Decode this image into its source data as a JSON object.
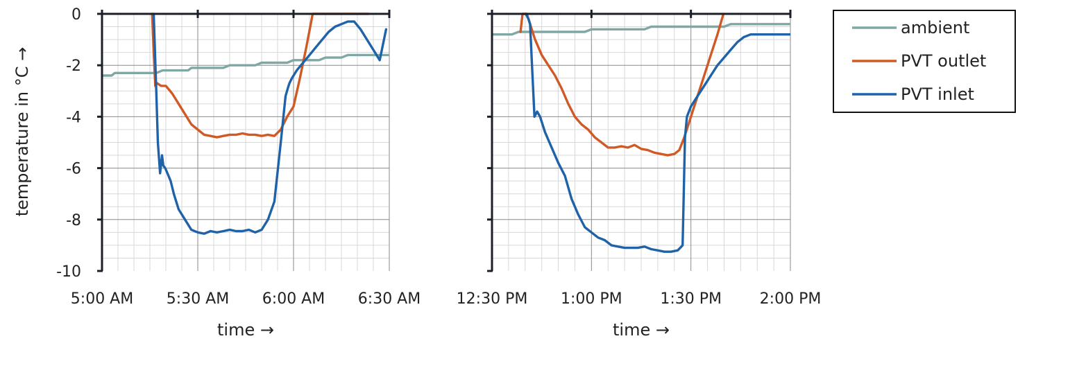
{
  "y_axis_title": "temperature in °C →",
  "legend": {
    "placement": "top-right",
    "items": [
      {
        "label": "ambient",
        "color": "#7fa8a5"
      },
      {
        "label": "PVT outlet",
        "color": "#cf5a26"
      },
      {
        "label": "PVT inlet",
        "color": "#1f62a8"
      }
    ]
  },
  "chart_data": [
    {
      "type": "line",
      "xlabel": "time →",
      "ylabel": "temperature in °C →",
      "xlim": [
        "5:00 AM",
        "6:30 AM"
      ],
      "ylim": [
        -10,
        0
      ],
      "x_ticks": [
        "5:00 AM",
        "5:30 AM",
        "6:00 AM",
        "6:30 AM"
      ],
      "y_ticks": [
        "0",
        "-2",
        "-4",
        "-6",
        "-8",
        "-10"
      ],
      "grid": true,
      "series": [
        {
          "name": "ambient",
          "color": "#7fa8a5",
          "x": [
            0,
            3,
            4,
            17,
            19,
            27,
            28,
            38,
            40,
            48,
            50,
            58,
            60,
            68,
            70,
            75,
            77,
            79,
            80,
            90
          ],
          "y": [
            -2.4,
            -2.4,
            -2.3,
            -2.3,
            -2.2,
            -2.2,
            -2.1,
            -2.1,
            -2.0,
            -2.0,
            -1.9,
            -1.9,
            -1.8,
            -1.8,
            -1.7,
            -1.7,
            -1.6,
            -1.6,
            -1.6,
            -1.6
          ]
        },
        {
          "name": "PVT outlet",
          "color": "#cf5a26",
          "x": [
            15.7,
            16.2,
            16.7,
            17.3,
            18.5,
            20,
            22,
            24,
            26,
            28,
            30,
            32,
            34,
            36,
            38,
            40,
            42,
            44,
            46,
            48,
            50,
            52,
            54,
            56,
            58,
            60,
            62,
            64,
            66,
            68,
            70,
            72,
            74,
            76,
            78,
            80,
            82,
            83.5
          ],
          "y": [
            0.0,
            -1.5,
            -2.8,
            -2.7,
            -2.8,
            -2.8,
            -3.1,
            -3.5,
            -3.9,
            -4.3,
            -4.5,
            -4.7,
            -4.75,
            -4.8,
            -4.75,
            -4.7,
            -4.7,
            -4.65,
            -4.7,
            -4.7,
            -4.75,
            -4.7,
            -4.75,
            -4.5,
            -4.0,
            -3.6,
            -2.5,
            -1.3,
            0.0,
            0.0,
            0.0,
            0.0,
            0.0,
            0.0,
            0.0,
            0.0,
            0.0,
            0.0
          ]
        },
        {
          "name": "PVT inlet",
          "color": "#1f62a8",
          "x": [
            16.2,
            17.0,
            17.5,
            18.2,
            18.8,
            19.2,
            19.8,
            20.5,
            21.5,
            22.5,
            24,
            26,
            28,
            30,
            32,
            34,
            36,
            38,
            40,
            42,
            44,
            46,
            48,
            50,
            52,
            54,
            56,
            57.5,
            58.2,
            58.7,
            59.5,
            61,
            63,
            65,
            67,
            69,
            71,
            73,
            75,
            77,
            79,
            81,
            83,
            85,
            87,
            89
          ],
          "y": [
            0.0,
            -3.0,
            -5.0,
            -6.2,
            -5.5,
            -5.9,
            -6.0,
            -6.2,
            -6.5,
            -7.0,
            -7.6,
            -8.0,
            -8.4,
            -8.5,
            -8.55,
            -8.45,
            -8.5,
            -8.45,
            -8.4,
            -8.45,
            -8.45,
            -8.4,
            -8.5,
            -8.4,
            -8.0,
            -7.3,
            -5.0,
            -3.2,
            -2.9,
            -2.7,
            -2.5,
            -2.2,
            -1.9,
            -1.6,
            -1.3,
            -1.0,
            -0.7,
            -0.5,
            -0.4,
            -0.3,
            -0.3,
            -0.6,
            -1.0,
            -1.4,
            -1.8,
            -0.6
          ]
        }
      ]
    },
    {
      "type": "line",
      "xlabel": "time →",
      "ylabel": "",
      "xlim": [
        "12:30 PM",
        "2:00 PM"
      ],
      "ylim": [
        -10,
        0
      ],
      "x_ticks": [
        "12:30 PM",
        "1:00 PM",
        "1:30 PM",
        "2:00 PM"
      ],
      "y_ticks": [
        "",
        "",
        "",
        "",
        "",
        ""
      ],
      "grid": true,
      "series": [
        {
          "name": "ambient",
          "color": "#7fa8a5",
          "x": [
            0,
            6,
            8,
            28,
            30,
            46,
            48,
            70,
            72,
            90
          ],
          "y": [
            -0.8,
            -0.8,
            -0.7,
            -0.7,
            -0.6,
            -0.6,
            -0.5,
            -0.5,
            -0.4,
            -0.4
          ]
        },
        {
          "name": "PVT outlet",
          "color": "#cf5a26",
          "x": [
            8.6,
            9.2,
            10.5,
            11.5,
            13,
            15,
            17,
            19,
            21,
            23,
            25,
            27,
            29,
            31,
            33,
            35,
            37,
            39,
            41,
            43,
            45,
            47,
            49,
            51,
            53,
            55,
            56.5,
            58,
            60,
            62,
            64,
            66,
            68,
            69.8
          ],
          "y": [
            -0.7,
            0.0,
            0.0,
            -0.4,
            -1.0,
            -1.6,
            -2.0,
            -2.4,
            -2.9,
            -3.5,
            -4.0,
            -4.3,
            -4.5,
            -4.8,
            -5.0,
            -5.2,
            -5.2,
            -5.15,
            -5.2,
            -5.1,
            -5.25,
            -5.3,
            -5.4,
            -5.45,
            -5.5,
            -5.45,
            -5.3,
            -4.8,
            -4.0,
            -3.2,
            -2.4,
            -1.6,
            -0.8,
            0.0
          ]
        },
        {
          "name": "PVT inlet",
          "color": "#1f62a8",
          "x": [
            10.2,
            11.0,
            11.5,
            12.0,
            12.8,
            13.6,
            14.5,
            16,
            18,
            20,
            22,
            24,
            26,
            28,
            30,
            32,
            34,
            36,
            38,
            40,
            42,
            44,
            46,
            48,
            50,
            52,
            54,
            56,
            57.5,
            58.2,
            58.8,
            60,
            62,
            64,
            66,
            68,
            70,
            72,
            74,
            76,
            78,
            80,
            82,
            84,
            86,
            90
          ],
          "y": [
            0.0,
            -0.2,
            -0.4,
            -1.8,
            -4.0,
            -3.8,
            -4.0,
            -4.6,
            -5.2,
            -5.8,
            -6.3,
            -7.2,
            -7.8,
            -8.3,
            -8.5,
            -8.7,
            -8.8,
            -9.0,
            -9.05,
            -9.1,
            -9.1,
            -9.1,
            -9.05,
            -9.15,
            -9.2,
            -9.25,
            -9.25,
            -9.2,
            -9.0,
            -4.8,
            -4.0,
            -3.6,
            -3.2,
            -2.8,
            -2.4,
            -2.0,
            -1.7,
            -1.4,
            -1.1,
            -0.9,
            -0.8,
            -0.8,
            -0.8,
            -0.8,
            -0.8,
            -0.8
          ]
        }
      ]
    }
  ]
}
